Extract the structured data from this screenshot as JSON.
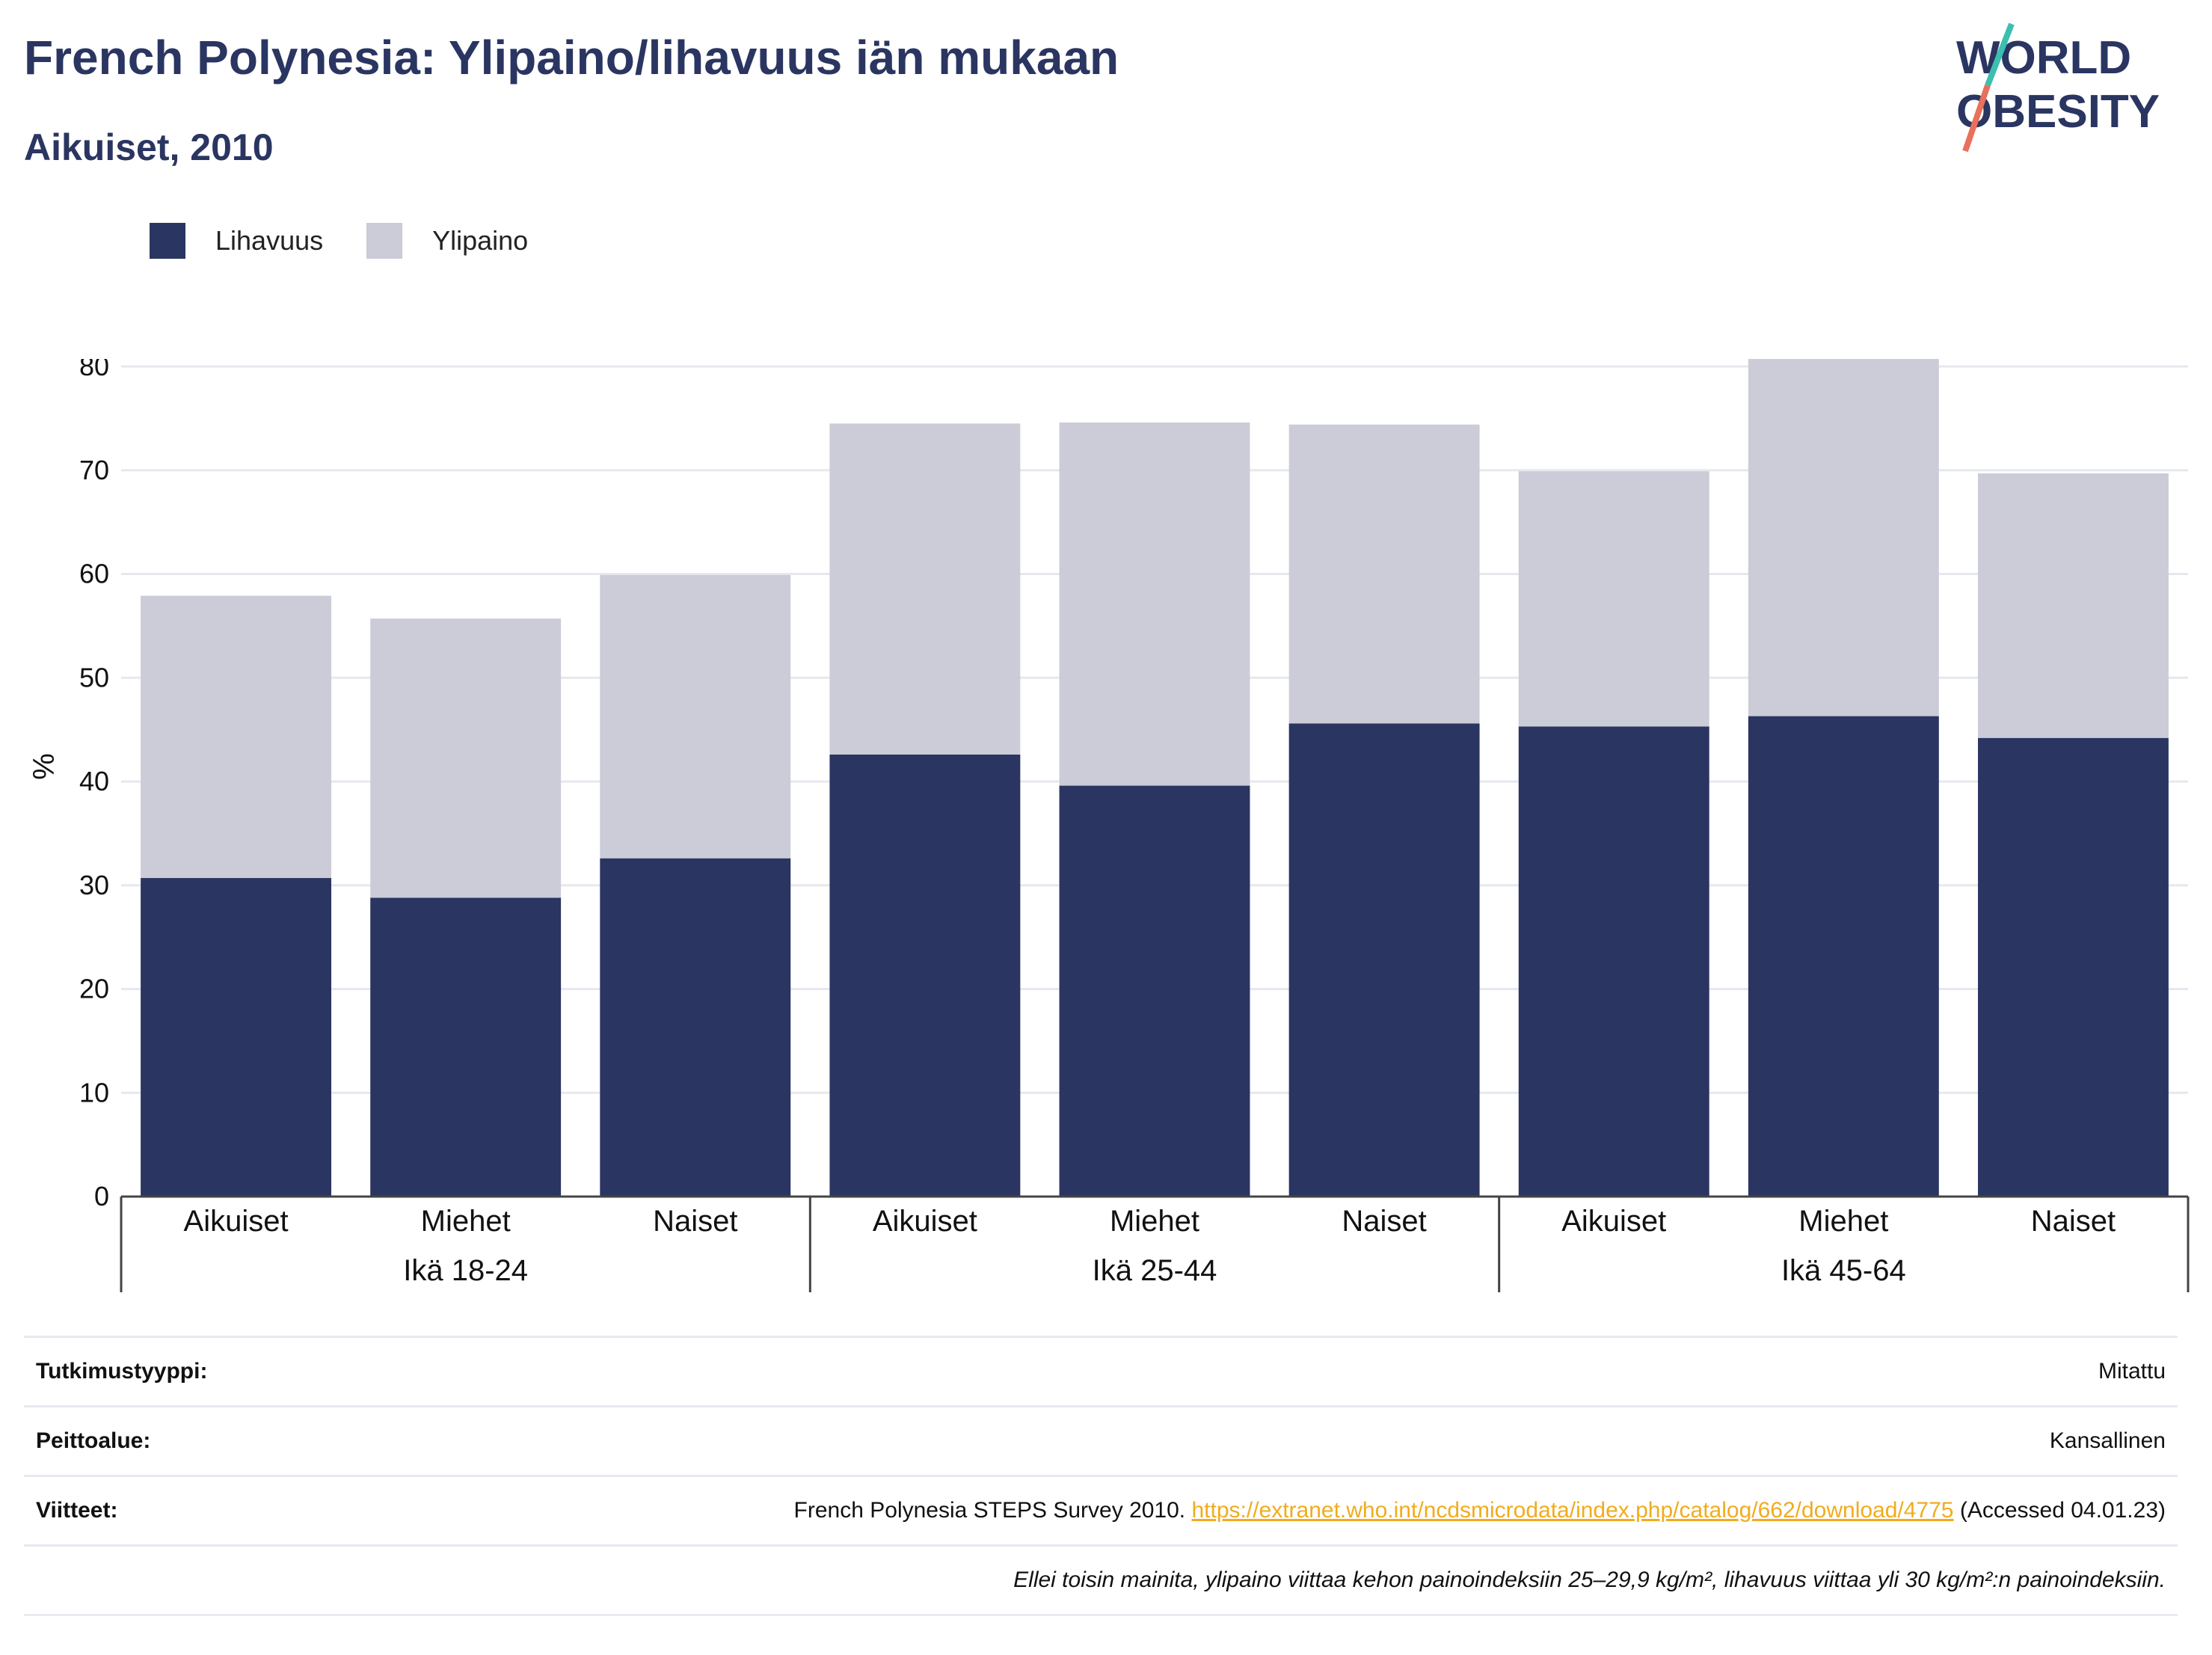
{
  "header": {
    "title": "French Polynesia: Ylipaino/lihavuus iän mukaan",
    "subtitle": "Aikuiset, 2010",
    "logo": {
      "line1": "WORLD",
      "line2": "OBESITY"
    }
  },
  "colors": {
    "obesity": "#2a3561",
    "overweight": "#cbccd7",
    "accent_link": "#f0ac1d",
    "logo_teal": "#3cbfb0",
    "logo_coral": "#e8705c"
  },
  "legend": [
    {
      "label": "Lihavuus",
      "color": "#2a3561"
    },
    {
      "label": "Ylipaino",
      "color": "#cbccd7"
    }
  ],
  "chart_data": {
    "type": "bar",
    "stacked": true,
    "ylabel": "%",
    "ylim": [
      0,
      80
    ],
    "yticks": [
      0,
      10,
      20,
      30,
      40,
      50,
      60,
      70,
      80
    ],
    "grid": true,
    "legend_position": "top-left",
    "groups": [
      {
        "label": "Ikä 18-24",
        "categories": [
          "Aikuiset",
          "Miehet",
          "Naiset"
        ]
      },
      {
        "label": "Ikä 25-44",
        "categories": [
          "Aikuiset",
          "Miehet",
          "Naiset"
        ]
      },
      {
        "label": "Ikä 45-64",
        "categories": [
          "Aikuiset",
          "Miehet",
          "Naiset"
        ]
      }
    ],
    "categories": [
      "Aikuiset",
      "Miehet",
      "Naiset",
      "Aikuiset",
      "Miehet",
      "Naiset",
      "Aikuiset",
      "Miehet",
      "Naiset"
    ],
    "series": [
      {
        "name": "Lihavuus",
        "values": [
          30.7,
          28.8,
          32.6,
          42.6,
          39.6,
          45.6,
          45.3,
          46.3,
          44.2
        ]
      },
      {
        "name": "Ylipaino",
        "values": [
          27.2,
          26.9,
          27.3,
          31.9,
          35.0,
          28.8,
          24.6,
          34.8,
          25.5
        ]
      }
    ]
  },
  "meta": {
    "rows": [
      {
        "key": "Tutkimustyyppi:",
        "value": "Mitattu"
      },
      {
        "key": "Peittoalue:",
        "value": "Kansallinen"
      }
    ],
    "references": {
      "key": "Viitteet:",
      "text": "French Polynesia STEPS Survey 2010. ",
      "link": "https://extranet.who.int/ncdsmicrodata/index.php/catalog/662/download/4775",
      "suffix": " (Accessed 04.01.23)"
    },
    "note": "Ellei toisin mainita, ylipaino viittaa kehon painoindeksiin 25–29,9 kg/m², lihavuus viittaa yli 30 kg/m²:n painoindeksiin."
  }
}
